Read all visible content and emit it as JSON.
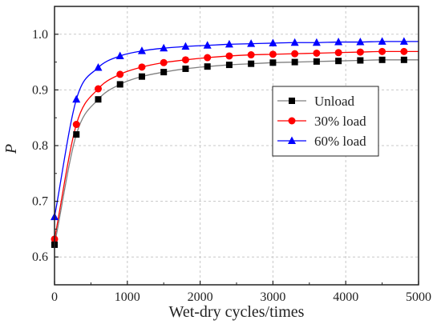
{
  "chart_data": {
    "type": "scatter",
    "xlabel": "Wet-dry cycles/times",
    "ylabel": "P",
    "xlim": [
      0,
      5000
    ],
    "ylim": [
      0.55,
      1.05
    ],
    "x_ticks": [
      0,
      1000,
      2000,
      3000,
      4000,
      5000
    ],
    "y_ticks": [
      0.6,
      0.7,
      0.8,
      0.9,
      1.0
    ],
    "x_tick_labels": [
      "0",
      "1000",
      "2000",
      "3000",
      "4000",
      "5000"
    ],
    "y_tick_labels": [
      "0.6",
      "0.7",
      "0.8",
      "0.9",
      "1.0"
    ],
    "grid": true,
    "legend_position": "right",
    "x": [
      0,
      300,
      600,
      900,
      1200,
      1500,
      1800,
      2100,
      2400,
      2700,
      3000,
      3300,
      3600,
      3900,
      4200,
      4500,
      4800
    ],
    "series": [
      {
        "name": "Unload",
        "marker": "square",
        "color": "#000000",
        "line_color": "#7f7f7f",
        "values": [
          0.622,
          0.82,
          0.883,
          0.91,
          0.924,
          0.932,
          0.938,
          0.942,
          0.945,
          0.947,
          0.949,
          0.95,
          0.951,
          0.952,
          0.953,
          0.954,
          0.954
        ]
      },
      {
        "name": "30% load",
        "marker": "circle",
        "color": "#ff0000",
        "line_color": "#ff0000",
        "values": [
          0.632,
          0.838,
          0.902,
          0.928,
          0.941,
          0.949,
          0.954,
          0.958,
          0.961,
          0.963,
          0.964,
          0.965,
          0.966,
          0.967,
          0.968,
          0.969,
          0.969
        ]
      },
      {
        "name": "60% load",
        "marker": "triangle",
        "color": "#0000ff",
        "line_color": "#0000ff",
        "values": [
          0.672,
          0.883,
          0.94,
          0.961,
          0.97,
          0.975,
          0.978,
          0.98,
          0.982,
          0.983,
          0.984,
          0.985,
          0.985,
          0.986,
          0.986,
          0.987,
          0.987
        ]
      }
    ]
  }
}
